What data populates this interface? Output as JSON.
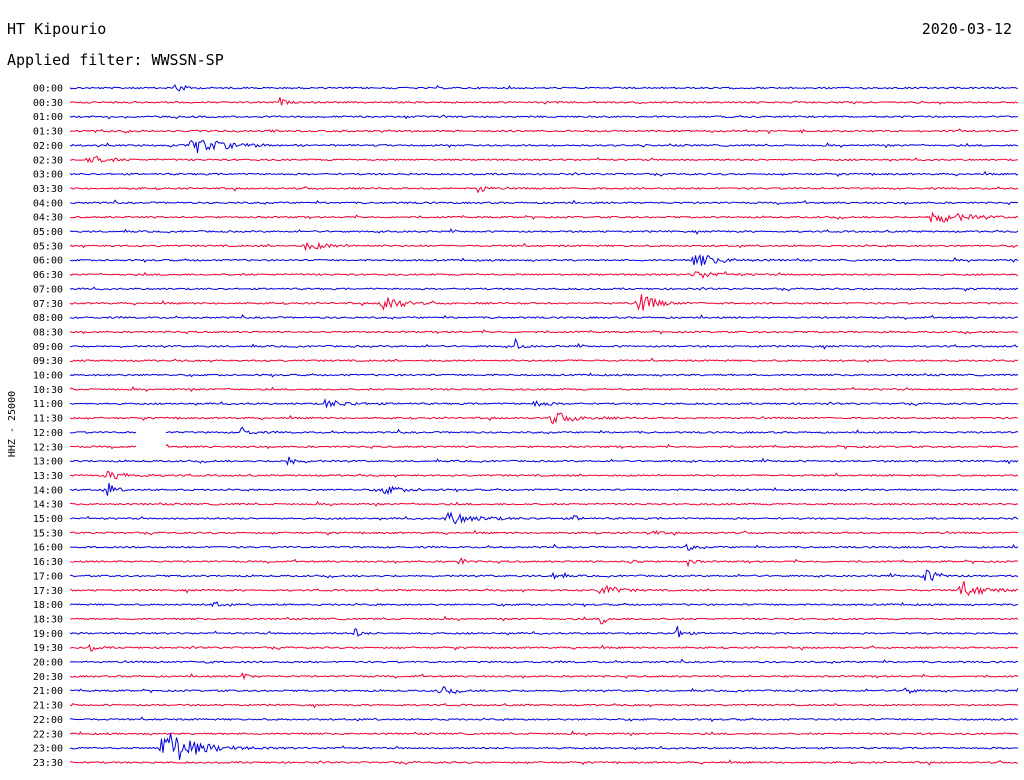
{
  "header": {
    "station": "HT Kipourio",
    "date": "2020-03-12",
    "filter": "Applied filter: WWSSN-SP"
  },
  "chart_data": {
    "type": "line",
    "title": "HT Kipourio",
    "subtitle": "Applied filter: WWSSN-SP",
    "ylabel": "HHZ - 25000",
    "xlabel": "",
    "trace_colors": [
      "#0000dd",
      "#ee0033"
    ],
    "row_labels": [
      "00:00",
      "00:30",
      "01:00",
      "01:30",
      "02:00",
      "02:30",
      "03:00",
      "03:30",
      "04:00",
      "04:30",
      "05:00",
      "05:30",
      "06:00",
      "06:30",
      "07:00",
      "07:30",
      "08:00",
      "08:30",
      "09:00",
      "09:30",
      "10:00",
      "10:30",
      "11:00",
      "11:30",
      "12:00",
      "12:30",
      "13:00",
      "13:30",
      "14:00",
      "14:30",
      "15:00",
      "15:30",
      "16:00",
      "16:30",
      "17:00",
      "17:30",
      "18:00",
      "18:30",
      "19:00",
      "19:30",
      "20:00",
      "20:30",
      "21:00",
      "21:30",
      "22:00",
      "22:30",
      "23:00",
      "23:30"
    ],
    "gaps": [
      {
        "row": 24,
        "from": 0.07,
        "to": 0.1
      },
      {
        "row": 25,
        "from": 0.07,
        "to": 0.1
      }
    ],
    "events": [
      {
        "row": 0,
        "pos": 0.11,
        "amp": 9,
        "width": 0.006
      },
      {
        "row": 1,
        "pos": 0.22,
        "amp": 6,
        "width": 0.005
      },
      {
        "row": 3,
        "pos": 0.21,
        "amp": 3,
        "width": 0.004
      },
      {
        "row": 3,
        "pos": 0.77,
        "amp": 3,
        "width": 0.004
      },
      {
        "row": 4,
        "pos": 0.13,
        "amp": 8,
        "width": 0.03
      },
      {
        "row": 5,
        "pos": 0.02,
        "amp": 5,
        "width": 0.015
      },
      {
        "row": 7,
        "pos": 0.43,
        "amp": 7,
        "width": 0.006
      },
      {
        "row": 9,
        "pos": 0.91,
        "amp": 8,
        "width": 0.025
      },
      {
        "row": 11,
        "pos": 0.25,
        "amp": 4,
        "width": 0.02
      },
      {
        "row": 12,
        "pos": 0.66,
        "amp": 7,
        "width": 0.02
      },
      {
        "row": 13,
        "pos": 0.66,
        "amp": 4,
        "width": 0.02
      },
      {
        "row": 15,
        "pos": 0.33,
        "amp": 11,
        "width": 0.014
      },
      {
        "row": 15,
        "pos": 0.6,
        "amp": 11,
        "width": 0.014
      },
      {
        "row": 18,
        "pos": 0.47,
        "amp": 7,
        "width": 0.005
      },
      {
        "row": 22,
        "pos": 0.27,
        "amp": 4,
        "width": 0.02
      },
      {
        "row": 22,
        "pos": 0.49,
        "amp": 4,
        "width": 0.01
      },
      {
        "row": 23,
        "pos": 0.51,
        "amp": 6,
        "width": 0.02
      },
      {
        "row": 24,
        "pos": 0.18,
        "amp": 7,
        "width": 0.006
      },
      {
        "row": 26,
        "pos": 0.23,
        "amp": 6,
        "width": 0.008
      },
      {
        "row": 27,
        "pos": 0.04,
        "amp": 4,
        "width": 0.02
      },
      {
        "row": 28,
        "pos": 0.04,
        "amp": 8,
        "width": 0.006
      },
      {
        "row": 28,
        "pos": 0.33,
        "amp": 5,
        "width": 0.015
      },
      {
        "row": 30,
        "pos": 0.4,
        "amp": 6,
        "width": 0.025
      },
      {
        "row": 30,
        "pos": 0.53,
        "amp": 4,
        "width": 0.006
      },
      {
        "row": 31,
        "pos": 0.61,
        "amp": 5,
        "width": 0.006
      },
      {
        "row": 32,
        "pos": 0.65,
        "amp": 5,
        "width": 0.005
      },
      {
        "row": 33,
        "pos": 0.41,
        "amp": 5,
        "width": 0.005
      },
      {
        "row": 33,
        "pos": 0.59,
        "amp": 5,
        "width": 0.005
      },
      {
        "row": 33,
        "pos": 0.65,
        "amp": 6,
        "width": 0.005
      },
      {
        "row": 34,
        "pos": 0.51,
        "amp": 6,
        "width": 0.006
      },
      {
        "row": 34,
        "pos": 0.9,
        "amp": 8,
        "width": 0.012
      },
      {
        "row": 35,
        "pos": 0.56,
        "amp": 8,
        "width": 0.012
      },
      {
        "row": 35,
        "pos": 0.94,
        "amp": 9,
        "width": 0.018
      },
      {
        "row": 36,
        "pos": 0.15,
        "amp": 5,
        "width": 0.005
      },
      {
        "row": 37,
        "pos": 0.56,
        "amp": 6,
        "width": 0.006
      },
      {
        "row": 38,
        "pos": 0.3,
        "amp": 6,
        "width": 0.005
      },
      {
        "row": 38,
        "pos": 0.64,
        "amp": 8,
        "width": 0.006
      },
      {
        "row": 39,
        "pos": 0.02,
        "amp": 4,
        "width": 0.006
      },
      {
        "row": 40,
        "pos": 0.14,
        "amp": 4,
        "width": 0.004
      },
      {
        "row": 41,
        "pos": 0.18,
        "amp": 5,
        "width": 0.005
      },
      {
        "row": 42,
        "pos": 0.39,
        "amp": 5,
        "width": 0.01
      },
      {
        "row": 42,
        "pos": 0.88,
        "amp": 6,
        "width": 0.006
      },
      {
        "row": 46,
        "pos": 0.1,
        "amp": 22,
        "width": 0.025
      }
    ]
  }
}
